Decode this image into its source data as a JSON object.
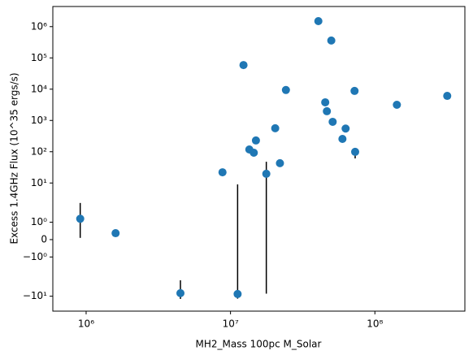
{
  "chart_data": {
    "type": "scatter",
    "x_label": "MH2_Mass 100pc M_Solar",
    "y_label": "Excess 1.4GHz Flux (10^35 ergs/s)",
    "xscale": "log",
    "yscale": "symlog",
    "linthresh": 2,
    "xlim": [
      588000,
      420000000
    ],
    "ylim": [
      -30,
      4400000
    ],
    "xticks": [
      {
        "value": 1000000,
        "label": "10⁶"
      },
      {
        "value": 10000000,
        "label": "10⁷"
      },
      {
        "value": 100000000,
        "label": "10⁸"
      }
    ],
    "yticks": [
      {
        "value": -10,
        "label": "−10¹"
      },
      {
        "value": -1,
        "label": "−10⁰"
      },
      0,
      {
        "value": 1,
        "label": "10⁰"
      },
      {
        "value": 10,
        "label": "10¹"
      },
      {
        "value": 100,
        "label": "10²"
      },
      {
        "value": 1000,
        "label": "10³"
      },
      {
        "value": 10000,
        "label": "10⁴"
      },
      {
        "value": 100000,
        "label": "10⁵"
      },
      {
        "value": 1000000,
        "label": "10⁶"
      }
    ],
    "color": "#1f77b4",
    "error_color": "#000000",
    "x": [
      910000,
      1600000,
      4500000,
      8800000,
      11200000,
      12300000,
      13500000,
      14500000,
      15000000,
      17700000,
      20400000,
      22000000,
      24200000,
      40600000,
      49900000,
      45300000,
      46500000,
      51000000,
      62700000,
      59600000,
      72300000,
      73000000,
      142000000,
      317000000
    ],
    "values": [
      1.2,
      0.37,
      -8,
      22,
      -8.5,
      59000,
      118,
      93,
      229,
      19.7,
      562,
      43,
      9400,
      1500000,
      360000,
      3800,
      1970,
      903,
      550,
      257,
      8800,
      99,
      3170,
      6100
    ],
    "yerr": [
      [
        1.1,
        1.1
      ],
      null,
      [
        4.2,
        4.9
      ],
      null,
      [
        3.5,
        17.5
      ],
      null,
      null,
      null,
      null,
      [
        28,
        28
      ],
      null,
      null,
      null,
      null,
      null,
      null,
      null,
      null,
      null,
      null,
      null,
      [
        38,
        27
      ],
      null,
      null
    ]
  }
}
